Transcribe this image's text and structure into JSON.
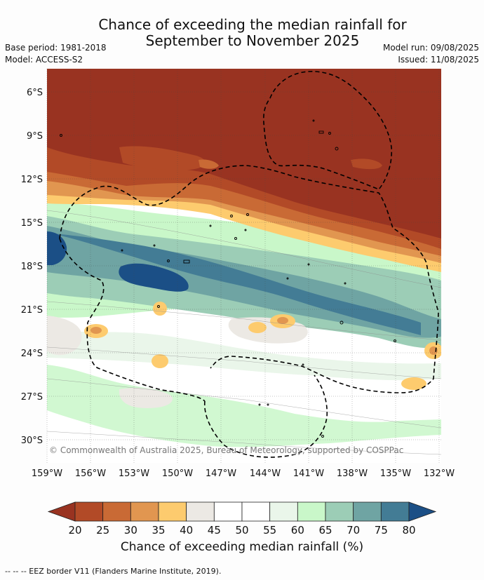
{
  "title": {
    "line1": "Chance of exceeding the median rainfall for",
    "line2": "September to November 2025"
  },
  "meta": {
    "base_period": "Base period: 1981-2018",
    "model": "Model: ACCESS-S2",
    "model_run": "Model run: 09/08/2025",
    "issued": "Issued: 11/08/2025"
  },
  "map": {
    "lat_labels": [
      "6°S",
      "9°S",
      "12°S",
      "15°S",
      "18°S",
      "21°S",
      "24°S",
      "27°S",
      "30°S"
    ],
    "lon_labels": [
      "159°W",
      "156°W",
      "153°W",
      "150°W",
      "147°W",
      "144°W",
      "141°W",
      "138°W",
      "135°W",
      "132°W"
    ],
    "credit": "© Commonwealth of Australia 2025, Bureau of Meteorology, supported by COSPPac",
    "colors": {
      "c15": "#993321",
      "c20": "#b24a27",
      "c25": "#c96a35",
      "c30": "#e19650",
      "c35": "#fdcb6e",
      "c40": "#ece9e4",
      "c45": "#ffffff",
      "c55": "#eaf6ea",
      "c60": "#c9f7c9",
      "c65": "#9ccdb6",
      "c70": "#6fa4a3",
      "c75": "#437c95",
      "c80": "#1b4f86"
    }
  },
  "colorbar": {
    "ticks": [
      "20",
      "25",
      "30",
      "35",
      "40",
      "45",
      "50",
      "55",
      "60",
      "65",
      "70",
      "75",
      "80"
    ],
    "colors": [
      "#993321",
      "#b24a27",
      "#c96a35",
      "#e19650",
      "#fdcb6e",
      "#ece9e4",
      "#ffffff",
      "#ffffff",
      "#eaf6ea",
      "#c9f7c9",
      "#9ccdb6",
      "#6fa4a3",
      "#437c95",
      "#1b4f86"
    ],
    "label": "Chance of exceeding median rainfall (%)"
  },
  "footer": {
    "legend": "--  --  -- EEZ border V11 (Flanders Marine Institute, 2019)."
  }
}
